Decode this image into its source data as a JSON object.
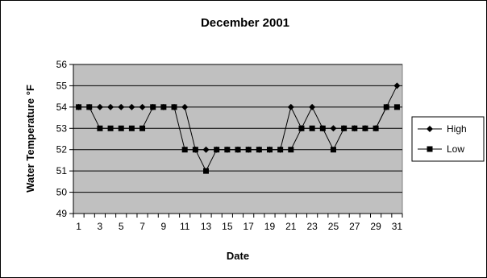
{
  "chart_data": {
    "type": "line",
    "title": "December 2001",
    "xlabel": "Date",
    "ylabel": "Water Temperature °F",
    "x": [
      1,
      2,
      3,
      4,
      5,
      6,
      7,
      8,
      9,
      10,
      11,
      12,
      13,
      14,
      15,
      16,
      17,
      18,
      19,
      20,
      21,
      22,
      23,
      24,
      25,
      26,
      27,
      28,
      29,
      30,
      31
    ],
    "x_tick_labels": [
      "1",
      "3",
      "5",
      "7",
      "9",
      "11",
      "13",
      "15",
      "17",
      "19",
      "21",
      "23",
      "25",
      "27",
      "29",
      "31"
    ],
    "ylim": [
      49,
      56
    ],
    "y_ticks": [
      49,
      50,
      51,
      52,
      53,
      54,
      55,
      56
    ],
    "grid": "horizontal",
    "legend_position": "right",
    "colors": {
      "plot_background": "#c0c0c0",
      "line": "#000000",
      "frame": "#000000"
    },
    "series": [
      {
        "name": "High",
        "marker": "diamond",
        "values": [
          54,
          54,
          54,
          54,
          54,
          54,
          54,
          54,
          54,
          54,
          54,
          52,
          52,
          52,
          52,
          52,
          52,
          52,
          52,
          52,
          54,
          53,
          54,
          53,
          53,
          53,
          53,
          53,
          53,
          54,
          55
        ]
      },
      {
        "name": "Low",
        "marker": "square",
        "values": [
          54,
          54,
          53,
          53,
          53,
          53,
          53,
          54,
          54,
          54,
          52,
          52,
          51,
          52,
          52,
          52,
          52,
          52,
          52,
          52,
          52,
          53,
          53,
          53,
          52,
          53,
          53,
          53,
          53,
          54,
          54
        ]
      }
    ]
  }
}
